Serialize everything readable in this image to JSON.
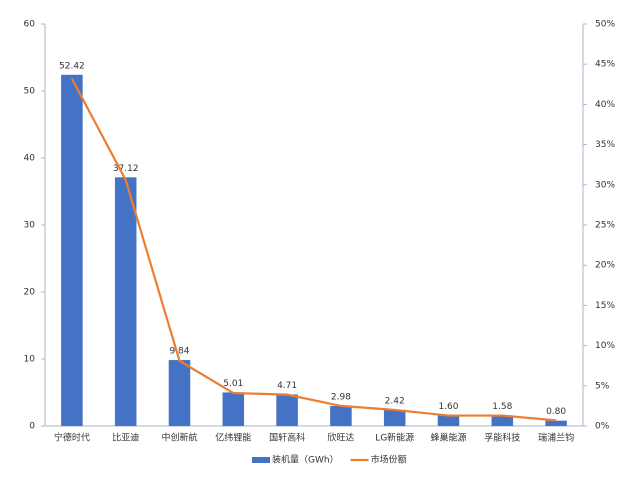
{
  "chart_data": {
    "type": "bar",
    "categories": [
      "宁德时代",
      "比亚迪",
      "中创新航",
      "亿纬锂能",
      "国轩高科",
      "欣旺达",
      "LG新能源",
      "蜂巢能源",
      "孚能科技",
      "瑞浦兰钧"
    ],
    "series": [
      {
        "name": "装机量（GWh）",
        "type": "bar",
        "color": "#4472c4",
        "values": [
          52.42,
          37.12,
          9.84,
          5.01,
          4.71,
          2.98,
          2.42,
          1.6,
          1.58,
          0.8
        ],
        "value_labels": [
          "52.42",
          "37.12",
          "9.84",
          "5.01",
          "4.71",
          "2.98",
          "2.42",
          "1.60",
          "1.58",
          "0.80"
        ]
      },
      {
        "name": "市场份额",
        "type": "line",
        "axis": "y2",
        "color": "#ed7d31",
        "values": [
          43.2,
          30.6,
          8.1,
          4.1,
          3.9,
          2.5,
          2.0,
          1.3,
          1.3,
          0.7
        ]
      }
    ],
    "ylim": [
      0,
      60
    ],
    "yticks": [
      0,
      10,
      20,
      30,
      40,
      50,
      60
    ],
    "y2lim": [
      0,
      50
    ],
    "y2ticks": [
      {
        "value": 0,
        "label": "0%"
      },
      {
        "value": 5,
        "label": "5%"
      },
      {
        "value": 10,
        "label": "10%"
      },
      {
        "value": 15,
        "label": "15%"
      },
      {
        "value": 20,
        "label": "20%"
      },
      {
        "value": 25,
        "label": "25%"
      },
      {
        "value": 30,
        "label": "30%"
      },
      {
        "value": 35,
        "label": "35%"
      },
      {
        "value": 40,
        "label": "40%"
      },
      {
        "value": 45,
        "label": "45%"
      },
      {
        "value": 50,
        "label": "50%"
      }
    ],
    "grid": false,
    "legend": "bottom"
  }
}
